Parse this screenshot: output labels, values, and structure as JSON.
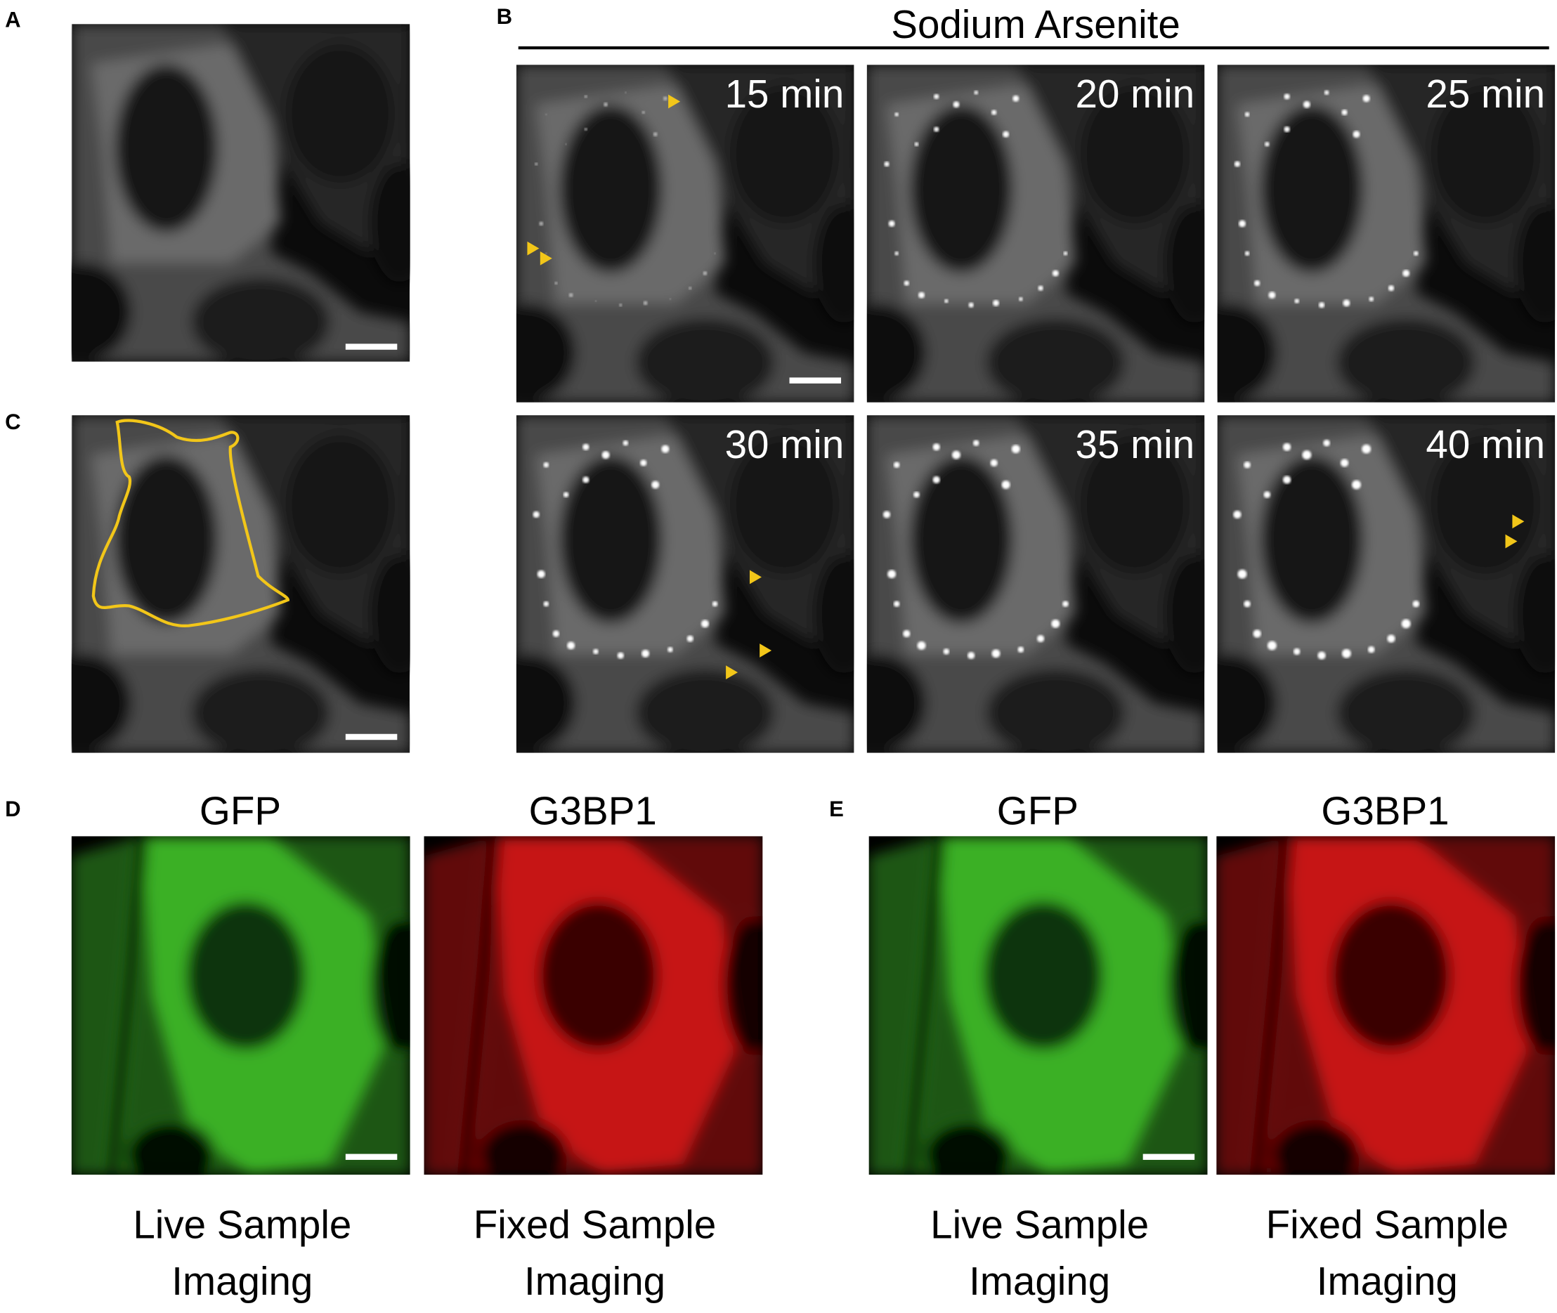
{
  "panel_a": {
    "label": "A"
  },
  "panel_b": {
    "label": "B",
    "title": "Sodium Arsenite",
    "frames": [
      "15 min",
      "20 min",
      "25 min",
      "30 min",
      "35 min",
      "40 min"
    ]
  },
  "panel_c": {
    "label": "C"
  },
  "panel_d": {
    "label": "D",
    "images": [
      {
        "heading": "GFP",
        "caption": [
          "Live Sample",
          "Imaging"
        ]
      },
      {
        "heading": "G3BP1",
        "caption": [
          "Fixed Sample",
          "Imaging"
        ]
      }
    ]
  },
  "panel_e": {
    "label": "E",
    "images": [
      {
        "heading": "GFP",
        "caption": [
          "Live Sample",
          "Imaging"
        ]
      },
      {
        "heading": "G3BP1",
        "caption": [
          "Fixed Sample",
          "Imaging"
        ]
      }
    ]
  }
}
